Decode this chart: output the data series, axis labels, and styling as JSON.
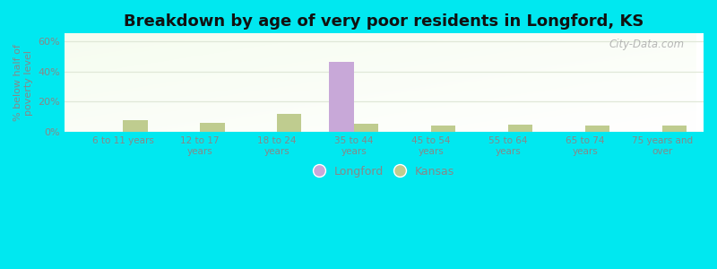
{
  "title": "Breakdown by age of very poor residents in Longford, KS",
  "ylabel": "% below half of\npoverty level",
  "categories": [
    "6 to 11 years",
    "12 to 17\nyears",
    "18 to 24\nyears",
    "35 to 44\nyears",
    "45 to 54\nyears",
    "55 to 64\nyears",
    "65 to 74\nyears",
    "75 years and\nover"
  ],
  "longford_values": [
    0,
    0,
    0,
    46,
    0,
    0,
    0,
    0
  ],
  "kansas_values": [
    8,
    6,
    12,
    5.5,
    4.5,
    5,
    4,
    4
  ],
  "longford_color": "#c8a8d8",
  "kansas_color": "#bfcc8f",
  "ylim": [
    0,
    65
  ],
  "yticks": [
    0,
    20,
    40,
    60
  ],
  "ytick_labels": [
    "0%",
    "20%",
    "40%",
    "60%"
  ],
  "outer_bg": "#00e8f0",
  "bar_width": 0.32,
  "watermark": "City-Data.com",
  "legend_longford": "Longford",
  "legend_kansas": "Kansas",
  "grid_color": "#e0e8d8",
  "tick_color": "#888888",
  "title_color": "#111111"
}
